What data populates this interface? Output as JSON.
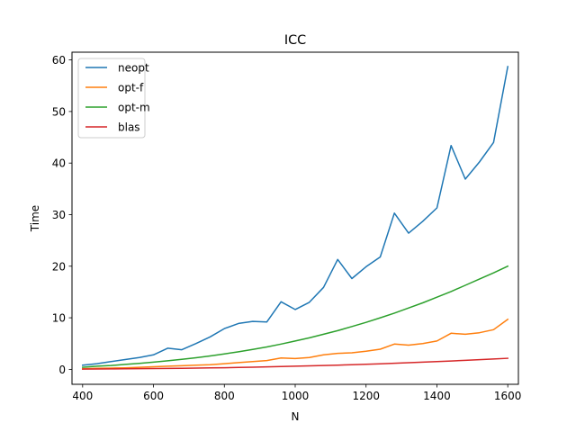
{
  "chart_data": {
    "type": "line",
    "title": "ICC",
    "xlabel": "N",
    "ylabel": "Time",
    "xlim": [
      370,
      1630
    ],
    "ylim": [
      -2.9,
      61.5
    ],
    "xticks": [
      400,
      600,
      800,
      1000,
      1200,
      1400,
      1600
    ],
    "yticks": [
      0,
      10,
      20,
      30,
      40,
      50,
      60
    ],
    "grid": false,
    "legend_position": "top-left",
    "x": [
      400,
      440,
      480,
      520,
      560,
      600,
      640,
      680,
      720,
      760,
      800,
      840,
      880,
      920,
      960,
      1000,
      1040,
      1080,
      1120,
      1160,
      1200,
      1240,
      1280,
      1320,
      1360,
      1400,
      1440,
      1480,
      1520,
      1560,
      1600
    ],
    "series": [
      {
        "name": "neopt",
        "color": "#1f77b4",
        "values": [
          0.8,
          1.1,
          1.5,
          1.9,
          2.3,
          2.8,
          4.1,
          3.8,
          5.0,
          6.3,
          7.9,
          8.9,
          9.3,
          9.2,
          13.1,
          11.6,
          13.0,
          15.9,
          21.3,
          17.6,
          19.9,
          21.8,
          30.3,
          26.4,
          28.7,
          31.3,
          43.4,
          36.9,
          40.2,
          44.0,
          58.7
        ]
      },
      {
        "name": "opt-f",
        "color": "#ff7f0e",
        "values": [
          0.1,
          0.2,
          0.25,
          0.3,
          0.4,
          0.5,
          0.6,
          0.7,
          0.8,
          0.9,
          1.1,
          1.3,
          1.5,
          1.7,
          2.2,
          2.1,
          2.3,
          2.8,
          3.1,
          3.2,
          3.5,
          3.9,
          4.9,
          4.7,
          5.0,
          5.5,
          7.0,
          6.8,
          7.1,
          7.7,
          9.7
        ]
      },
      {
        "name": "opt-m",
        "color": "#2ca02c",
        "values": [
          0.4,
          0.6,
          0.75,
          0.95,
          1.15,
          1.4,
          1.65,
          1.95,
          2.25,
          2.6,
          3.0,
          3.4,
          3.85,
          4.35,
          4.9,
          5.5,
          6.1,
          6.8,
          7.5,
          8.3,
          9.1,
          10.0,
          10.9,
          11.9,
          12.9,
          14.0,
          15.1,
          16.3,
          17.5,
          18.7,
          20.0
        ]
      },
      {
        "name": "blas",
        "color": "#d62728",
        "values": [
          0.05,
          0.07,
          0.09,
          0.11,
          0.13,
          0.15,
          0.18,
          0.21,
          0.24,
          0.28,
          0.32,
          0.37,
          0.42,
          0.48,
          0.54,
          0.6,
          0.67,
          0.74,
          0.82,
          0.9,
          0.99,
          1.08,
          1.18,
          1.28,
          1.39,
          1.5,
          1.62,
          1.75,
          1.88,
          2.01,
          2.15
        ]
      }
    ]
  }
}
